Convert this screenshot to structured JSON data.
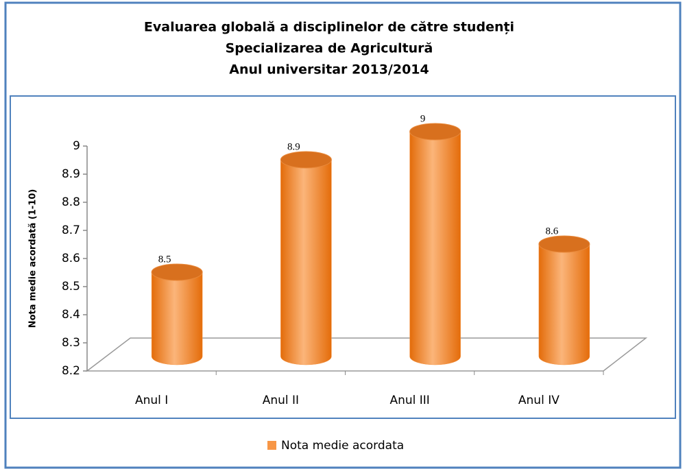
{
  "chart_data": {
    "type": "bar",
    "title": [
      "Evaluarea globală a disciplinelor de către studenți",
      "Specializarea de Agricultură",
      "Anul universitar 2013/2014"
    ],
    "y_label": "Nota medie acordată (1-10)",
    "categories": [
      "Anul I",
      "Anul II",
      "Anul III",
      "Anul IV"
    ],
    "series": [
      {
        "name": "Nota medie acordata",
        "color": "#f79646",
        "values": [
          8.5,
          8.9,
          9,
          8.6
        ]
      }
    ],
    "ylim": [
      8.2,
      9
    ],
    "yticks": [
      8.2,
      8.3,
      8.4,
      8.5,
      8.6,
      8.7,
      8.8,
      8.9,
      9
    ],
    "legend": "bottom"
  }
}
